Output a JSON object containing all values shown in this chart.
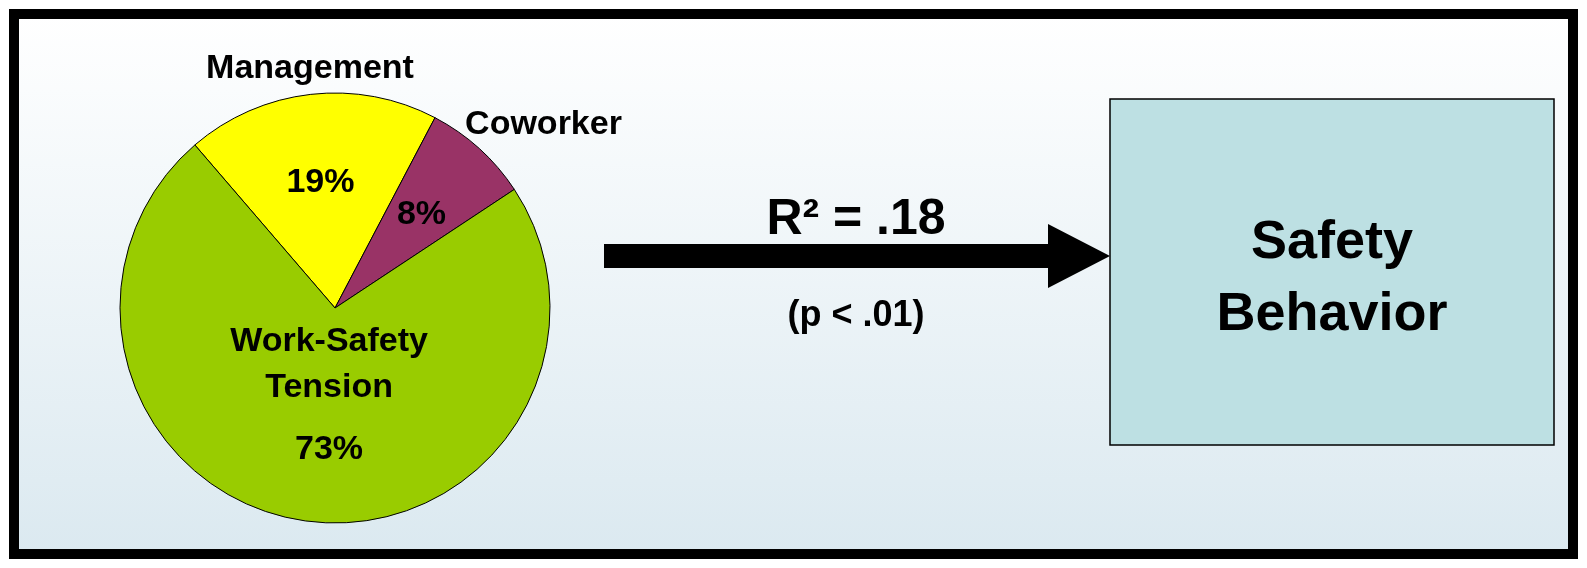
{
  "chart_data": {
    "type": "pie",
    "categories": [
      "Management",
      "Coworker",
      "Work-Safety Tension"
    ],
    "values": [
      19,
      8,
      73
    ],
    "colors": [
      "#ffff00",
      "#993366",
      "#99cc00"
    ],
    "value_labels": [
      "19%",
      "8%",
      "73%"
    ],
    "annotations": [
      "R² = .18",
      "(p < .01)",
      "Safety Behavior"
    ]
  }
}
